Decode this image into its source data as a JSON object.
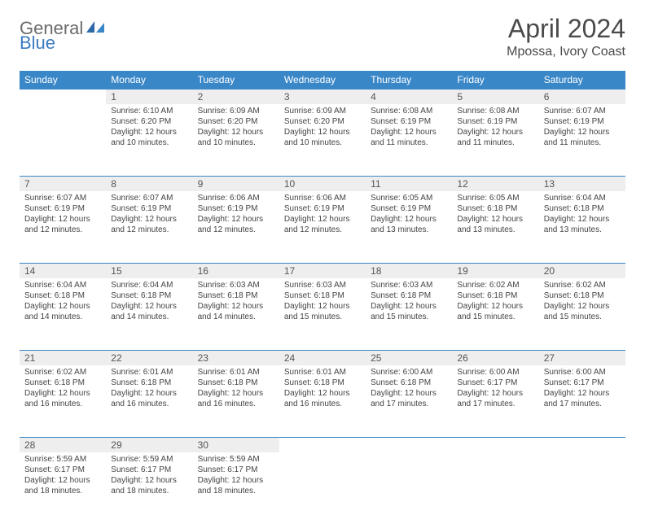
{
  "brand": {
    "general": "General",
    "blue": "Blue"
  },
  "title": "April 2024",
  "location": "Mpossa, Ivory Coast",
  "colors": {
    "header_bg": "#3a87c8",
    "header_text": "#ffffff",
    "daynum_bg": "#eeeeee",
    "border": "#3a87c8",
    "body_text": "#444444",
    "title_text": "#4a4a4a",
    "brand_gray": "#6b6b6b",
    "brand_blue": "#3a7cc2"
  },
  "day_headers": [
    "Sunday",
    "Monday",
    "Tuesday",
    "Wednesday",
    "Thursday",
    "Friday",
    "Saturday"
  ],
  "weeks": [
    [
      null,
      {
        "n": "1",
        "sr": "6:10 AM",
        "ss": "6:20 PM",
        "dl": "12 hours and 10 minutes."
      },
      {
        "n": "2",
        "sr": "6:09 AM",
        "ss": "6:20 PM",
        "dl": "12 hours and 10 minutes."
      },
      {
        "n": "3",
        "sr": "6:09 AM",
        "ss": "6:20 PM",
        "dl": "12 hours and 10 minutes."
      },
      {
        "n": "4",
        "sr": "6:08 AM",
        "ss": "6:19 PM",
        "dl": "12 hours and 11 minutes."
      },
      {
        "n": "5",
        "sr": "6:08 AM",
        "ss": "6:19 PM",
        "dl": "12 hours and 11 minutes."
      },
      {
        "n": "6",
        "sr": "6:07 AM",
        "ss": "6:19 PM",
        "dl": "12 hours and 11 minutes."
      }
    ],
    [
      {
        "n": "7",
        "sr": "6:07 AM",
        "ss": "6:19 PM",
        "dl": "12 hours and 12 minutes."
      },
      {
        "n": "8",
        "sr": "6:07 AM",
        "ss": "6:19 PM",
        "dl": "12 hours and 12 minutes."
      },
      {
        "n": "9",
        "sr": "6:06 AM",
        "ss": "6:19 PM",
        "dl": "12 hours and 12 minutes."
      },
      {
        "n": "10",
        "sr": "6:06 AM",
        "ss": "6:19 PM",
        "dl": "12 hours and 12 minutes."
      },
      {
        "n": "11",
        "sr": "6:05 AM",
        "ss": "6:19 PM",
        "dl": "12 hours and 13 minutes."
      },
      {
        "n": "12",
        "sr": "6:05 AM",
        "ss": "6:18 PM",
        "dl": "12 hours and 13 minutes."
      },
      {
        "n": "13",
        "sr": "6:04 AM",
        "ss": "6:18 PM",
        "dl": "12 hours and 13 minutes."
      }
    ],
    [
      {
        "n": "14",
        "sr": "6:04 AM",
        "ss": "6:18 PM",
        "dl": "12 hours and 14 minutes."
      },
      {
        "n": "15",
        "sr": "6:04 AM",
        "ss": "6:18 PM",
        "dl": "12 hours and 14 minutes."
      },
      {
        "n": "16",
        "sr": "6:03 AM",
        "ss": "6:18 PM",
        "dl": "12 hours and 14 minutes."
      },
      {
        "n": "17",
        "sr": "6:03 AM",
        "ss": "6:18 PM",
        "dl": "12 hours and 15 minutes."
      },
      {
        "n": "18",
        "sr": "6:03 AM",
        "ss": "6:18 PM",
        "dl": "12 hours and 15 minutes."
      },
      {
        "n": "19",
        "sr": "6:02 AM",
        "ss": "6:18 PM",
        "dl": "12 hours and 15 minutes."
      },
      {
        "n": "20",
        "sr": "6:02 AM",
        "ss": "6:18 PM",
        "dl": "12 hours and 15 minutes."
      }
    ],
    [
      {
        "n": "21",
        "sr": "6:02 AM",
        "ss": "6:18 PM",
        "dl": "12 hours and 16 minutes."
      },
      {
        "n": "22",
        "sr": "6:01 AM",
        "ss": "6:18 PM",
        "dl": "12 hours and 16 minutes."
      },
      {
        "n": "23",
        "sr": "6:01 AM",
        "ss": "6:18 PM",
        "dl": "12 hours and 16 minutes."
      },
      {
        "n": "24",
        "sr": "6:01 AM",
        "ss": "6:18 PM",
        "dl": "12 hours and 16 minutes."
      },
      {
        "n": "25",
        "sr": "6:00 AM",
        "ss": "6:18 PM",
        "dl": "12 hours and 17 minutes."
      },
      {
        "n": "26",
        "sr": "6:00 AM",
        "ss": "6:17 PM",
        "dl": "12 hours and 17 minutes."
      },
      {
        "n": "27",
        "sr": "6:00 AM",
        "ss": "6:17 PM",
        "dl": "12 hours and 17 minutes."
      }
    ],
    [
      {
        "n": "28",
        "sr": "5:59 AM",
        "ss": "6:17 PM",
        "dl": "12 hours and 18 minutes."
      },
      {
        "n": "29",
        "sr": "5:59 AM",
        "ss": "6:17 PM",
        "dl": "12 hours and 18 minutes."
      },
      {
        "n": "30",
        "sr": "5:59 AM",
        "ss": "6:17 PM",
        "dl": "12 hours and 18 minutes."
      },
      null,
      null,
      null,
      null
    ]
  ],
  "labels": {
    "sunrise": "Sunrise:",
    "sunset": "Sunset:",
    "daylight": "Daylight:"
  }
}
